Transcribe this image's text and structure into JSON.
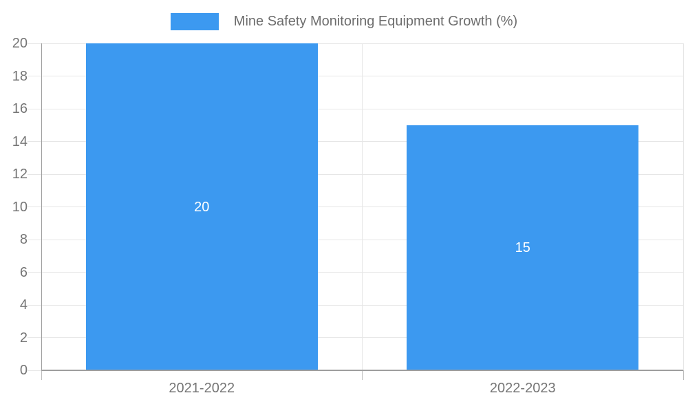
{
  "legend": {
    "label": "Mine Safety Monitoring Equipment Growth (%)"
  },
  "chart_data": {
    "type": "bar",
    "title": "Mine Safety Monitoring Equipment Growth (%)",
    "categories": [
      "2021-2022",
      "2022-2023"
    ],
    "values": [
      20,
      15
    ],
    "value_labels": [
      "20",
      "15"
    ],
    "xlabel": "",
    "ylabel": "",
    "ylim": [
      0,
      20
    ],
    "ytick_step": 2,
    "ytick_labels": [
      "0",
      "2",
      "4",
      "6",
      "8",
      "10",
      "12",
      "14",
      "16",
      "18",
      "20"
    ],
    "grid": true,
    "legend_position": "top-center",
    "colors": {
      "bar": "#3C99F0",
      "value_label": "#FFFFFF",
      "axis_tick_label": "#757575",
      "legend_text": "#6D6D6D",
      "gridline": "#E6E6E6",
      "axis_line": "#9E9E9E",
      "below_tick": "#BDBDBD"
    }
  }
}
